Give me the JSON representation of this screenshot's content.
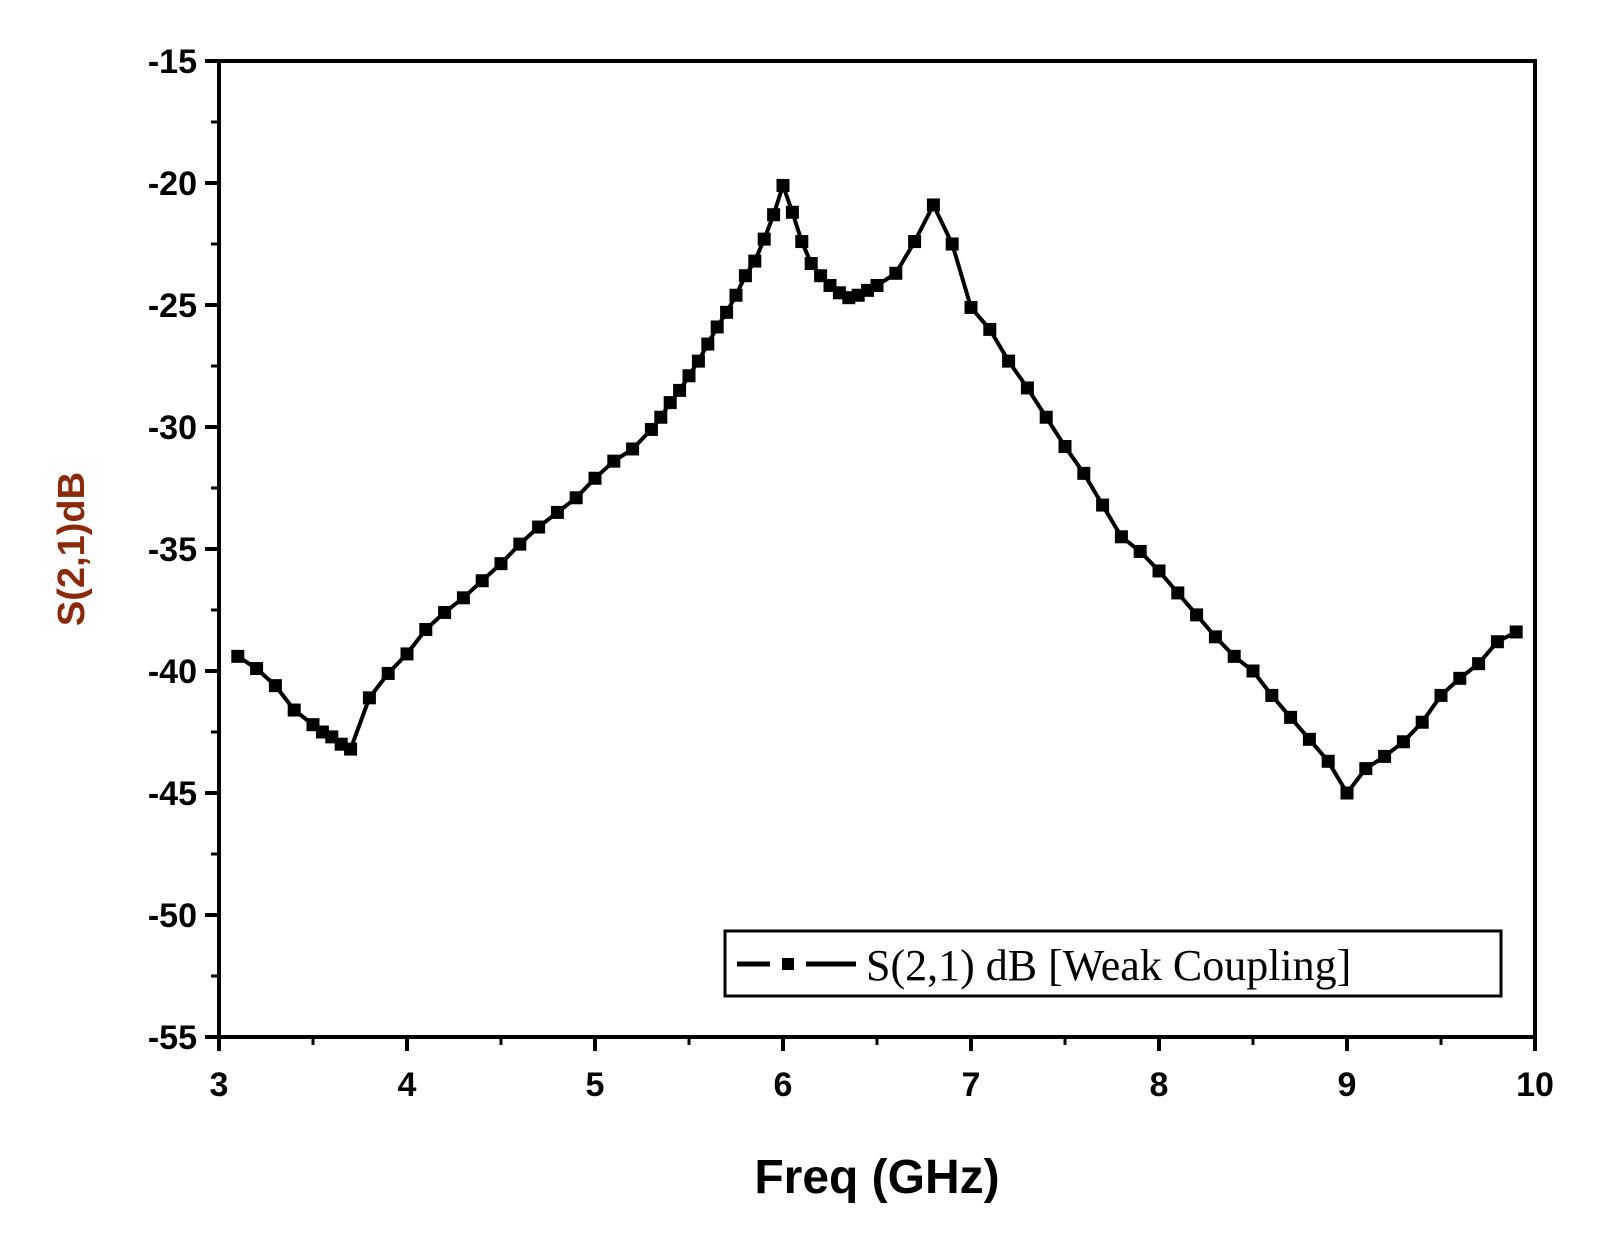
{
  "chart_data": {
    "type": "line",
    "title": "",
    "xlabel": "Freq (GHz)",
    "ylabel": "S(2,1)dB",
    "xlim": [
      3,
      10
    ],
    "ylim": [
      -55,
      -15
    ],
    "xticks": [
      3,
      4,
      5,
      6,
      7,
      8,
      9,
      10
    ],
    "yticks": [
      -15,
      -20,
      -25,
      -30,
      -35,
      -40,
      -45,
      -50,
      -55
    ],
    "grid": false,
    "legend_position": "bottom-right",
    "colors": {
      "series": "#000000",
      "ylabel": "#8b2a0a",
      "axes": "#000000"
    },
    "series": [
      {
        "name": "S(2,1) dB [Weak Coupling]",
        "marker": "square",
        "line_style": "dash-dot",
        "x": [
          3.1,
          3.2,
          3.3,
          3.4,
          3.5,
          3.55,
          3.6,
          3.65,
          3.7,
          3.8,
          3.9,
          4.0,
          4.1,
          4.2,
          4.3,
          4.4,
          4.5,
          4.6,
          4.7,
          4.8,
          4.9,
          5.0,
          5.1,
          5.2,
          5.3,
          5.35,
          5.4,
          5.45,
          5.5,
          5.55,
          5.6,
          5.65,
          5.7,
          5.75,
          5.8,
          5.85,
          5.9,
          5.95,
          6.0,
          6.05,
          6.1,
          6.15,
          6.2,
          6.25,
          6.3,
          6.35,
          6.4,
          6.45,
          6.5,
          6.6,
          6.7,
          6.8,
          6.9,
          7.0,
          7.1,
          7.2,
          7.3,
          7.4,
          7.5,
          7.6,
          7.7,
          7.8,
          7.9,
          8.0,
          8.1,
          8.2,
          8.3,
          8.4,
          8.5,
          8.6,
          8.7,
          8.8,
          8.9,
          9.0,
          9.1,
          9.2,
          9.3,
          9.4,
          9.5,
          9.6,
          9.7,
          9.8,
          9.9
        ],
        "y": [
          -39.4,
          -39.9,
          -40.6,
          -41.6,
          -42.2,
          -42.5,
          -42.7,
          -43.0,
          -43.2,
          -41.1,
          -40.1,
          -39.3,
          -38.3,
          -37.6,
          -37.0,
          -36.3,
          -35.6,
          -34.8,
          -34.1,
          -33.5,
          -32.9,
          -32.1,
          -31.4,
          -30.9,
          -30.1,
          -29.6,
          -29.0,
          -28.5,
          -27.9,
          -27.3,
          -26.6,
          -25.9,
          -25.3,
          -24.6,
          -23.8,
          -23.2,
          -22.3,
          -21.3,
          -20.1,
          -21.2,
          -22.4,
          -23.3,
          -23.8,
          -24.2,
          -24.5,
          -24.7,
          -24.6,
          -24.4,
          -24.2,
          -23.7,
          -22.4,
          -20.9,
          -22.5,
          -25.1,
          -26.0,
          -27.3,
          -28.4,
          -29.6,
          -30.8,
          -31.9,
          -33.2,
          -34.5,
          -35.1,
          -35.9,
          -36.8,
          -37.7,
          -38.6,
          -39.4,
          -40.0,
          -41.0,
          -41.9,
          -42.8,
          -43.7,
          -45.0,
          -44.0,
          -43.5,
          -42.9,
          -42.1,
          -41.0,
          -40.3,
          -39.7,
          -38.8,
          -38.4
        ]
      }
    ]
  }
}
